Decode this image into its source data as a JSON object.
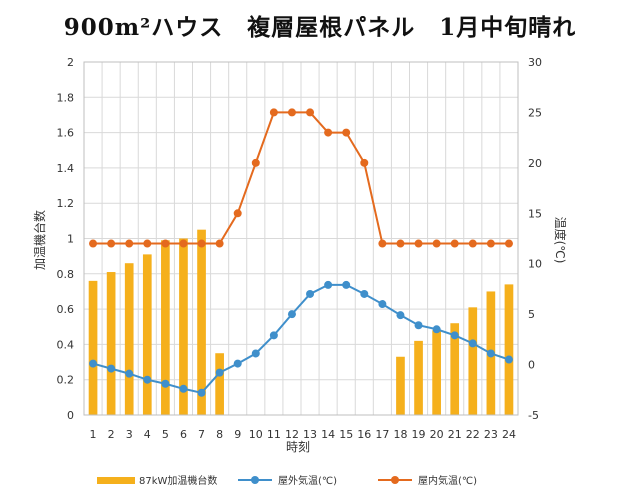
{
  "chart_data": {
    "type": "bar",
    "title": "900m²ハウス　複層屋根パネル　1月中旬晴れ",
    "xlabel": "時刻",
    "ylabel_left": "加温機台数",
    "ylabel_right": "温度(℃)",
    "categories": [
      "1",
      "2",
      "3",
      "4",
      "5",
      "6",
      "7",
      "8",
      "9",
      "10",
      "11",
      "12",
      "13",
      "14",
      "15",
      "16",
      "17",
      "18",
      "19",
      "20",
      "21",
      "22",
      "23",
      "24"
    ],
    "ylim_left": [
      0,
      2
    ],
    "yticks_left": [
      "0",
      "0.2",
      "0.4",
      "0.6",
      "0.8",
      "1",
      "1.2",
      "1.4",
      "1.6",
      "1.8",
      "2"
    ],
    "ylim_right": [
      -5,
      30
    ],
    "yticks_right": [
      "-5",
      "0",
      "5",
      "10",
      "15",
      "20",
      "25",
      "30"
    ],
    "grid": true,
    "legend_position": "bottom",
    "series": [
      {
        "name": "87kW加温機台数",
        "type": "bar",
        "axis": "left",
        "color": "#F5B01C",
        "values": [
          0.76,
          0.81,
          0.86,
          0.91,
          0.99,
          1.0,
          1.05,
          0.35,
          0,
          0,
          0,
          0,
          0,
          0,
          0,
          0,
          0,
          0.33,
          0.42,
          0.48,
          0.52,
          0.61,
          0.7,
          0.74
        ]
      },
      {
        "name": "屋外気温(℃)",
        "type": "line",
        "axis": "right",
        "color": "#3F8FCB",
        "values": [
          0.1,
          -0.4,
          -0.9,
          -1.5,
          -1.9,
          -2.4,
          -2.8,
          -0.8,
          0.1,
          1.1,
          2.9,
          5.0,
          7.0,
          7.9,
          7.9,
          7.0,
          6.0,
          4.9,
          3.9,
          3.5,
          2.9,
          2.1,
          1.1,
          0.5
        ]
      },
      {
        "name": "屋内気温(℃)",
        "type": "line",
        "axis": "right",
        "color": "#E46A1E",
        "values": [
          12,
          12,
          12,
          12,
          12,
          12,
          12,
          12,
          15,
          20,
          25,
          25,
          25,
          23,
          23,
          20,
          12,
          12,
          12,
          12,
          12,
          12,
          12,
          12
        ]
      }
    ]
  }
}
